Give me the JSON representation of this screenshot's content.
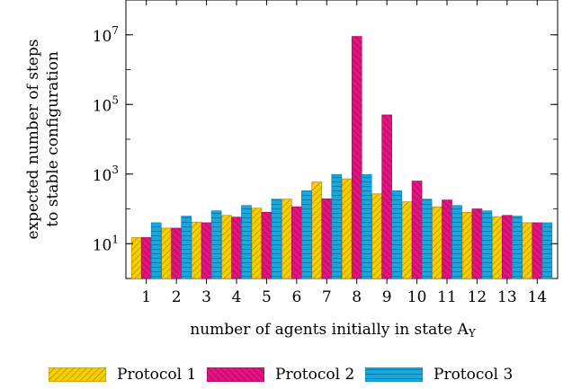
{
  "chart_data": {
    "type": "bar",
    "categories": [
      "1",
      "2",
      "3",
      "4",
      "5",
      "6",
      "7",
      "8",
      "9",
      "10",
      "11",
      "12",
      "13",
      "14"
    ],
    "series": [
      {
        "name": "Protocol 1",
        "color": "#f5d000",
        "pattern": "diagonal-hatch-ne",
        "values": [
          15,
          28,
          42,
          65,
          105,
          190,
          590,
          730,
          270,
          160,
          115,
          80,
          60,
          40
        ]
      },
      {
        "name": "Protocol 2",
        "color": "#e0157f",
        "pattern": "diagonal-hatch-nw",
        "values": [
          15,
          28,
          40,
          58,
          80,
          115,
          195,
          9000000,
          50000,
          630,
          180,
          100,
          65,
          40
        ]
      },
      {
        "name": "Protocol 3",
        "color": "#1aa7dc",
        "pattern": "horizontal-lines",
        "values": [
          40,
          62,
          88,
          125,
          190,
          330,
          970,
          970,
          330,
          190,
          125,
          88,
          62,
          40
        ]
      }
    ],
    "xlabel": "number of agents initially in state A",
    "xlabel_subscript": "Y",
    "ylabel_line1": "expected number of steps",
    "ylabel_line2": "to stable configuration",
    "yscale": "log",
    "ylim": [
      1,
      100000000
    ],
    "yticks": [
      {
        "base": "10",
        "exp": "1",
        "value": 10
      },
      {
        "base": "10",
        "exp": "3",
        "value": 1000
      },
      {
        "base": "10",
        "exp": "5",
        "value": 100000
      },
      {
        "base": "10",
        "exp": "7",
        "value": 10000000
      }
    ],
    "grid": false,
    "legend_position": "bottom"
  }
}
